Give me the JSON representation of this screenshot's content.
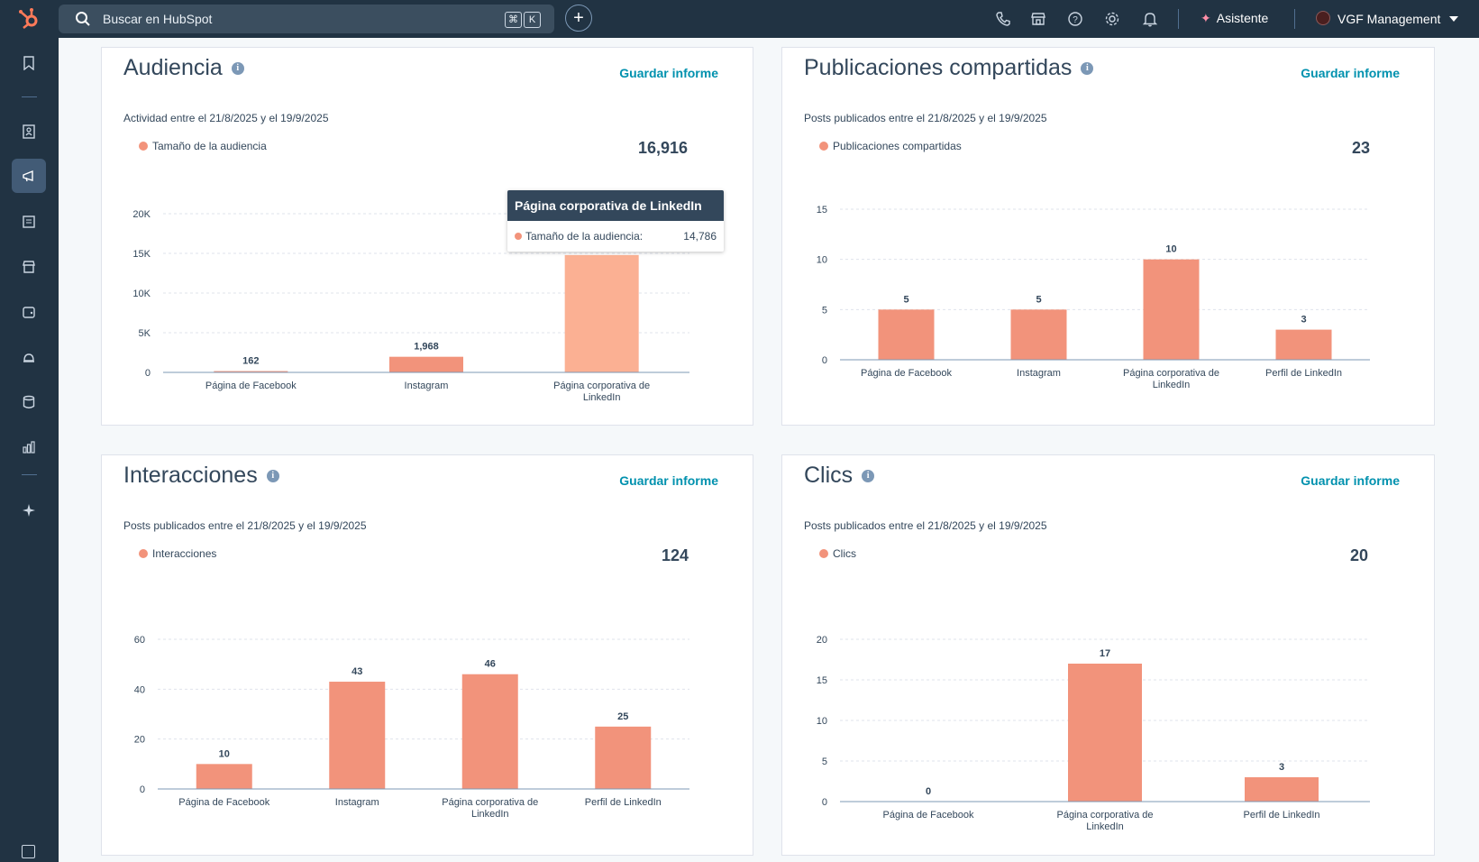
{
  "topbar": {
    "search_placeholder": "Buscar en HubSpot",
    "kbd_cmd": "⌘",
    "kbd_k": "K",
    "assistant_label": "Asistente",
    "account_name": "VGF Management"
  },
  "colors": {
    "accent": "#f2937b",
    "highlight": "#fbb093",
    "link": "#0091ae",
    "nav": "#213343"
  },
  "cards": {
    "audiencia": {
      "title": "Audiencia",
      "save_label": "Guardar informe",
      "subtitle": "Actividad entre el 21/8/2025 y el 19/9/2025",
      "legend": "Tamaño de la audiencia",
      "total": "16,916"
    },
    "publicaciones": {
      "title": "Publicaciones compartidas",
      "save_label": "Guardar informe",
      "subtitle": "Posts publicados entre el 21/8/2025 y el 19/9/2025",
      "legend": "Publicaciones compartidas",
      "total": "23"
    },
    "interacciones": {
      "title": "Interacciones",
      "save_label": "Guardar informe",
      "subtitle": "Posts publicados entre el 21/8/2025 y el 19/9/2025",
      "legend": "Interacciones",
      "total": "124"
    },
    "clics": {
      "title": "Clics",
      "save_label": "Guardar informe",
      "subtitle": "Posts publicados entre el 21/8/2025 y el 19/9/2025",
      "legend": "Clics",
      "total": "20"
    }
  },
  "tooltip": {
    "title": "Página corporativa de LinkedIn",
    "label": "Tamaño de la audiencia:",
    "value": "14,786"
  },
  "chart_data": [
    {
      "id": "audiencia",
      "type": "bar",
      "categories": [
        "Página de Facebook",
        "Instagram",
        "Página corporativa de LinkedIn"
      ],
      "values": [
        162,
        1968,
        14786
      ],
      "labels": [
        "162",
        "1,968",
        ""
      ],
      "ylim": [
        0,
        20000
      ],
      "yticks": [
        0,
        5000,
        10000,
        15000,
        20000
      ],
      "ytick_labels": [
        "0",
        "5K",
        "10K",
        "15K",
        "20K"
      ],
      "highlight_index": 2
    },
    {
      "id": "publicaciones",
      "type": "bar",
      "categories": [
        "Página de Facebook",
        "Instagram",
        "Página corporativa de LinkedIn",
        "Perfil de LinkedIn"
      ],
      "values": [
        5,
        5,
        10,
        3
      ],
      "labels": [
        "5",
        "5",
        "10",
        "3"
      ],
      "ylim": [
        0,
        15
      ],
      "yticks": [
        0,
        5,
        10,
        15
      ],
      "ytick_labels": [
        "0",
        "5",
        "10",
        "15"
      ]
    },
    {
      "id": "interacciones",
      "type": "bar",
      "categories": [
        "Página de Facebook",
        "Instagram",
        "Página corporativa de LinkedIn",
        "Perfil de LinkedIn"
      ],
      "values": [
        10,
        43,
        46,
        25
      ],
      "labels": [
        "10",
        "43",
        "46",
        "25"
      ],
      "ylim": [
        0,
        60
      ],
      "yticks": [
        0,
        20,
        40,
        60
      ],
      "ytick_labels": [
        "0",
        "20",
        "40",
        "60"
      ]
    },
    {
      "id": "clics",
      "type": "bar",
      "categories": [
        "Página de Facebook",
        "Página corporativa de LinkedIn",
        "Perfil de LinkedIn"
      ],
      "values": [
        0,
        17,
        3
      ],
      "labels": [
        "0",
        "17",
        "3"
      ],
      "ylim": [
        0,
        20
      ],
      "yticks": [
        0,
        5,
        10,
        15,
        20
      ],
      "ytick_labels": [
        "0",
        "5",
        "10",
        "15",
        "20"
      ]
    }
  ]
}
